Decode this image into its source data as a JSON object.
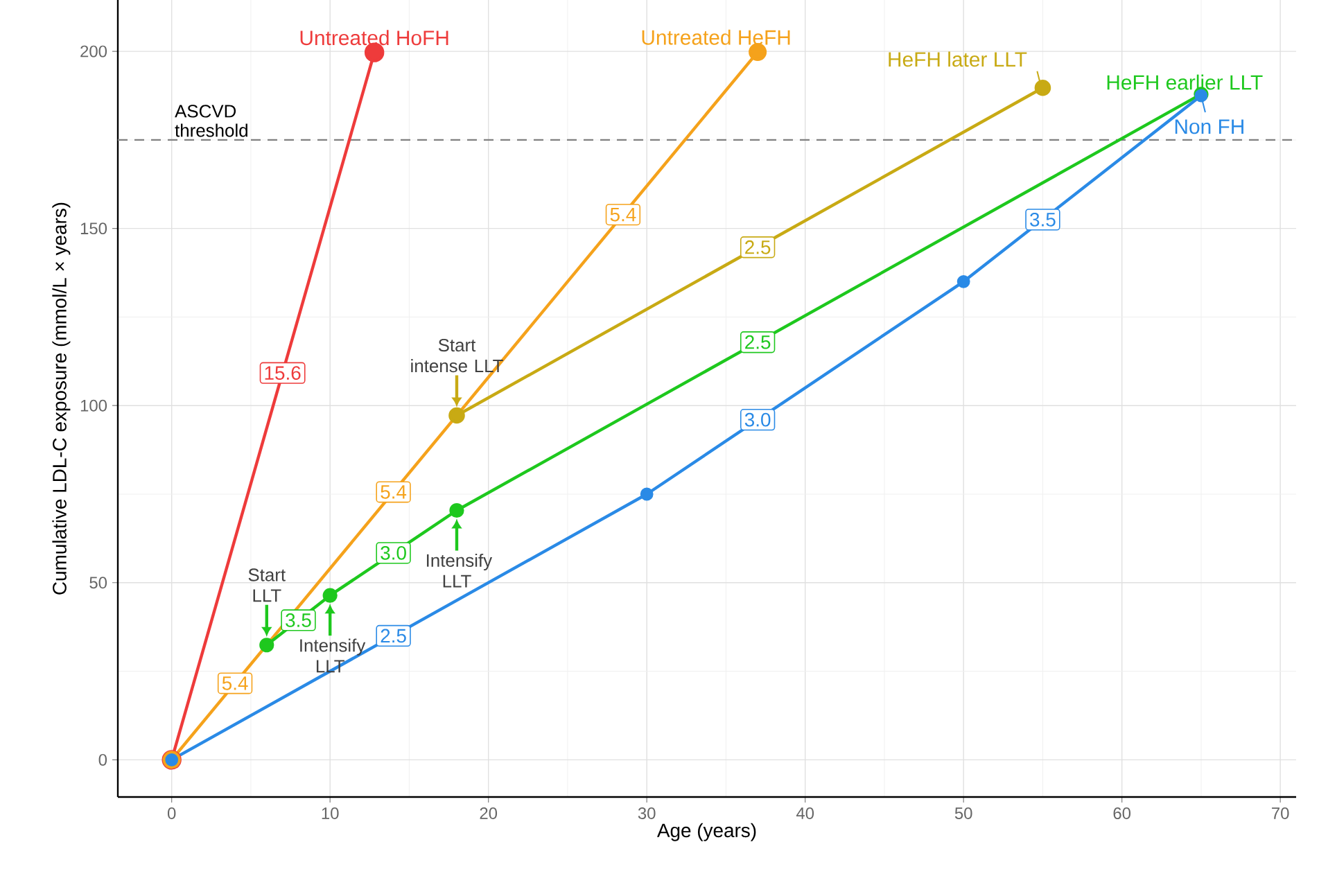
{
  "chart_data": {
    "type": "line",
    "xlabel": "Age (years)",
    "ylabel": "Cumulative LDL-C exposure (mmol/L × years)",
    "series": [
      {
        "name": "Untreated HoFH",
        "color": "#ee3b3b",
        "x": [
          0,
          12.8
        ],
        "values": [
          0,
          199.7
        ]
      },
      {
        "name": "Untreated HeFH",
        "color": "#f5a21b",
        "x": [
          0,
          37
        ],
        "values": [
          0,
          199.8
        ]
      },
      {
        "name": "HeFH later LLT",
        "color": "#c8aa14",
        "x": [
          18,
          55
        ],
        "values": [
          97.2,
          189.7
        ]
      },
      {
        "name": "HeFH earlier LLT",
        "color": "#1ec81e",
        "x": [
          6,
          10,
          18,
          65
        ],
        "values": [
          32.4,
          46.4,
          70.4,
          187.9
        ]
      },
      {
        "name": "Non FH",
        "color": "#2a8ae6",
        "x": [
          0,
          30,
          50,
          65
        ],
        "values": [
          0,
          75,
          135,
          187.5
        ]
      }
    ],
    "xlim": [
      -3.4,
      71
    ],
    "ylim": [
      -10.5,
      214.5
    ],
    "xticks": [
      0,
      10,
      20,
      30,
      40,
      50,
      60,
      70
    ],
    "yticks": [
      0,
      50,
      100,
      150,
      200
    ],
    "grid": true,
    "marker": "circle",
    "line_style": "solid",
    "ref_lines": [
      {
        "axis": "y",
        "value": 175,
        "label": "ASCVD threshold",
        "color": "#808080",
        "line_style": "dashed"
      }
    ],
    "annotations": [
      {
        "text": "15.6",
        "x": 7,
        "y": 109.2
      },
      {
        "text": "5.4",
        "x": 4,
        "y": 21.6
      },
      {
        "text": "5.4",
        "x": 14,
        "y": 75.6
      },
      {
        "text": "5.4",
        "x": 28.5,
        "y": 153.9
      },
      {
        "text": "2.5",
        "x": 37,
        "y": 144.7
      },
      {
        "text": "3.5",
        "x": 8,
        "y": 39.4
      },
      {
        "text": "3.0",
        "x": 14,
        "y": 58.4
      },
      {
        "text": "2.5",
        "x": 37,
        "y": 117.9
      },
      {
        "text": "2.5",
        "x": 14,
        "y": 35
      },
      {
        "text": "3.0",
        "x": 37,
        "y": 96
      },
      {
        "text": "3.5",
        "x": 55,
        "y": 152.5
      },
      {
        "text": "Start intense LLT",
        "x": 18,
        "y": 97.2
      },
      {
        "text": "Start LLT",
        "x": 6,
        "y": 32.4
      },
      {
        "text": "Intensify LLT",
        "x": 10,
        "y": 46.4
      },
      {
        "text": "Intensify LLT",
        "x": 18,
        "y": 70.4
      }
    ]
  }
}
